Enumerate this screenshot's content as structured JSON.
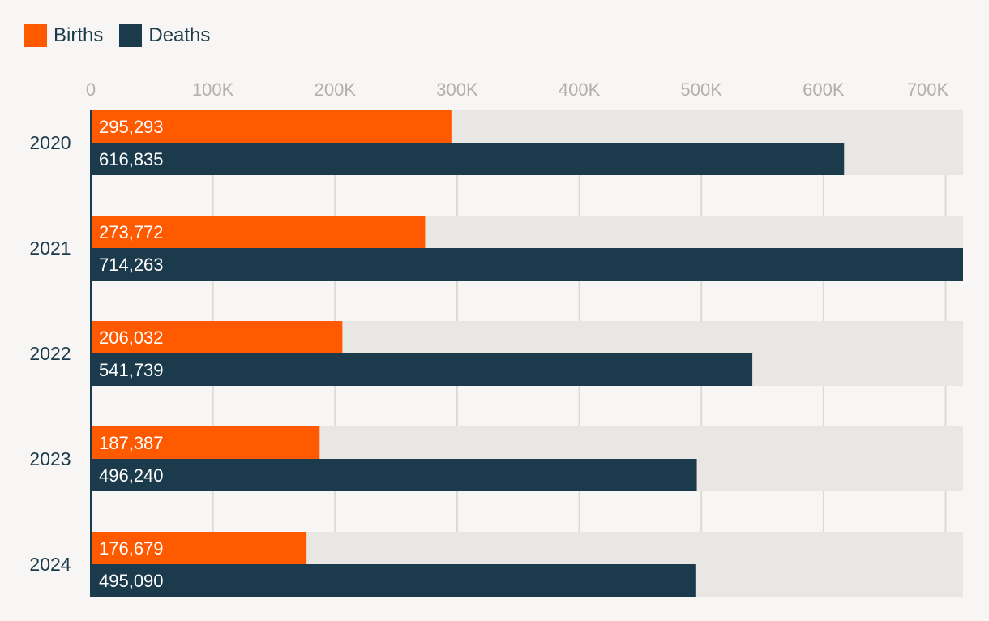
{
  "chart_data": {
    "type": "bar",
    "orientation": "horizontal",
    "title": "",
    "xlabel": "",
    "ylabel": "",
    "categories": [
      "2020",
      "2021",
      "2022",
      "2023",
      "2024"
    ],
    "series": [
      {
        "name": "Births",
        "color": "#ff5a00",
        "values": [
          295293,
          273772,
          206032,
          187387,
          176679
        ],
        "labels": [
          "295,293",
          "273,772",
          "206,032",
          "187,387",
          "176,679"
        ]
      },
      {
        "name": "Deaths",
        "color": "#1b3a4b",
        "values": [
          616835,
          714263,
          541739,
          496240,
          495090
        ],
        "labels": [
          "616,835",
          "714,263",
          "541,739",
          "496,240",
          "495,090"
        ]
      }
    ],
    "xlim": [
      0,
      714263
    ],
    "xticks": [
      0,
      100000,
      200000,
      300000,
      400000,
      500000,
      600000,
      700000
    ],
    "xtick_labels": [
      "0",
      "100K",
      "200K",
      "300K",
      "400K",
      "500K",
      "600K",
      "700K"
    ],
    "legend_position": "top-left",
    "grid": true,
    "track_color": "#e9e7e4",
    "grid_color": "#dcdad7"
  }
}
